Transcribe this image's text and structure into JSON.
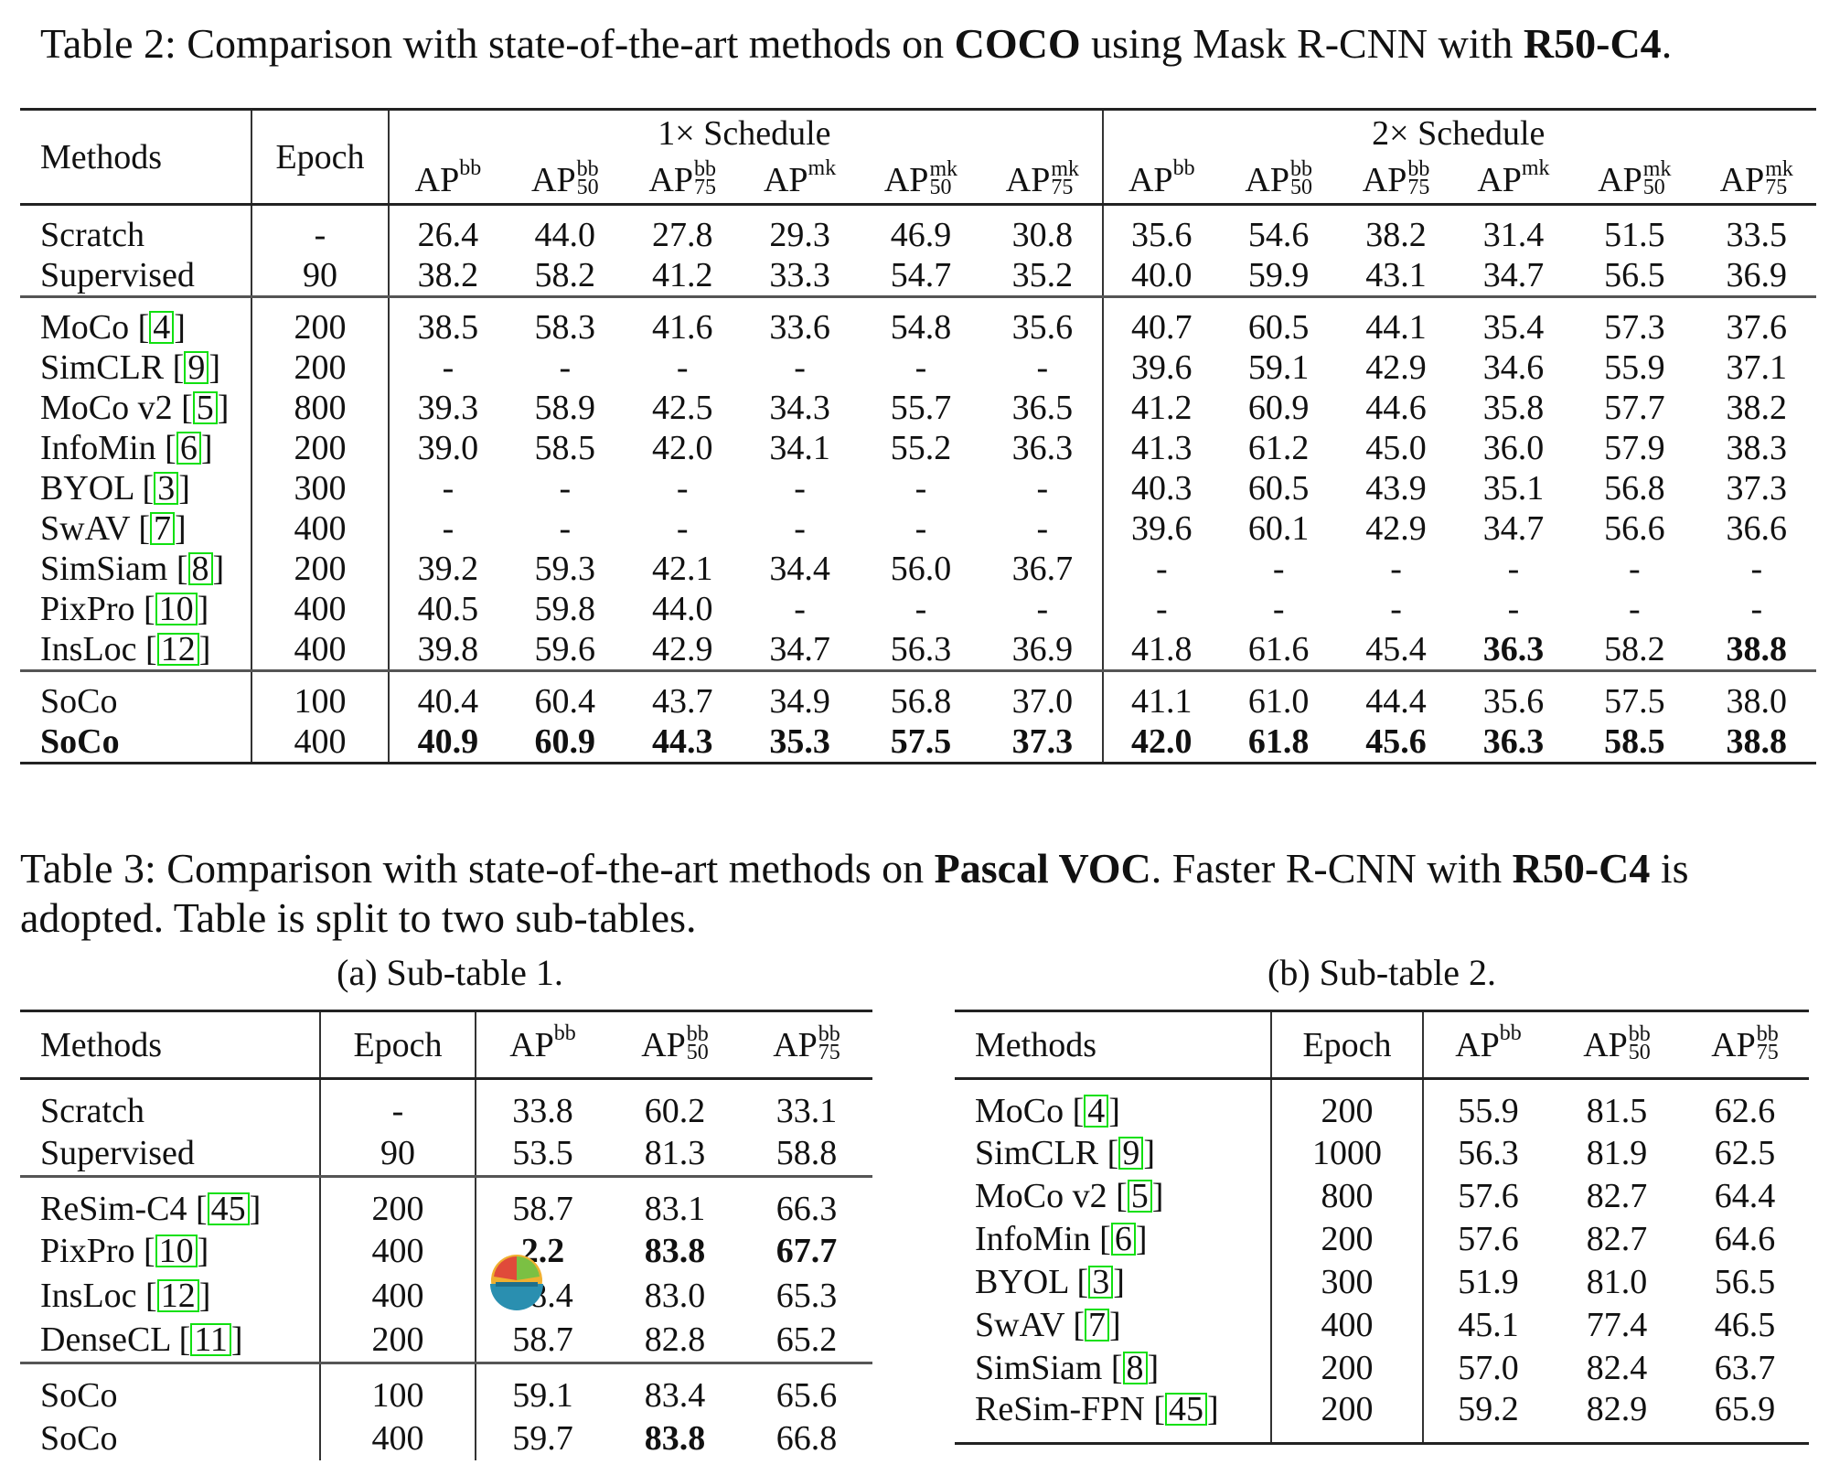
{
  "table2": {
    "caption_prefix": "Table 2: Comparison with state-of-the-art methods on ",
    "caption_bold1": "COCO",
    "caption_mid": " using Mask R-CNN with ",
    "caption_bold2": "R50-C4",
    "caption_end": ".",
    "hdr_methods": "Methods",
    "hdr_epoch": "Epoch",
    "hdr_sched1": "1× Schedule",
    "hdr_sched2": "2× Schedule",
    "ap": "AP",
    "bb": "bb",
    "mk": "mk",
    "s50": "50",
    "s75": "75",
    "rows": [
      {
        "method": "Scratch",
        "ref": "",
        "epoch": "-",
        "vals": [
          "26.4",
          "44.0",
          "27.8",
          "29.3",
          "46.9",
          "30.8",
          "35.6",
          "54.6",
          "38.2",
          "31.4",
          "51.5",
          "33.5"
        ]
      },
      {
        "method": "Supervised",
        "ref": "",
        "epoch": "90",
        "vals": [
          "38.2",
          "58.2",
          "41.2",
          "33.3",
          "54.7",
          "35.2",
          "40.0",
          "59.9",
          "43.1",
          "34.7",
          "56.5",
          "36.9"
        ]
      },
      {
        "method": "MoCo",
        "ref": "4",
        "epoch": "200",
        "vals": [
          "38.5",
          "58.3",
          "41.6",
          "33.6",
          "54.8",
          "35.6",
          "40.7",
          "60.5",
          "44.1",
          "35.4",
          "57.3",
          "37.6"
        ]
      },
      {
        "method": "SimCLR",
        "ref": "9",
        "epoch": "200",
        "vals": [
          "-",
          "-",
          "-",
          "-",
          "-",
          "-",
          "39.6",
          "59.1",
          "42.9",
          "34.6",
          "55.9",
          "37.1"
        ]
      },
      {
        "method": "MoCo v2",
        "ref": "5",
        "epoch": "800",
        "vals": [
          "39.3",
          "58.9",
          "42.5",
          "34.3",
          "55.7",
          "36.5",
          "41.2",
          "60.9",
          "44.6",
          "35.8",
          "57.7",
          "38.2"
        ]
      },
      {
        "method": "InfoMin",
        "ref": "6",
        "epoch": "200",
        "vals": [
          "39.0",
          "58.5",
          "42.0",
          "34.1",
          "55.2",
          "36.3",
          "41.3",
          "61.2",
          "45.0",
          "36.0",
          "57.9",
          "38.3"
        ]
      },
      {
        "method": "BYOL",
        "ref": "3",
        "epoch": "300",
        "vals": [
          "-",
          "-",
          "-",
          "-",
          "-",
          "-",
          "40.3",
          "60.5",
          "43.9",
          "35.1",
          "56.8",
          "37.3"
        ]
      },
      {
        "method": "SwAV",
        "ref": "7",
        "epoch": "400",
        "vals": [
          "-",
          "-",
          "-",
          "-",
          "-",
          "-",
          "39.6",
          "60.1",
          "42.9",
          "34.7",
          "56.6",
          "36.6"
        ]
      },
      {
        "method": "SimSiam",
        "ref": "8",
        "epoch": "200",
        "vals": [
          "39.2",
          "59.3",
          "42.1",
          "34.4",
          "56.0",
          "36.7",
          "-",
          "-",
          "-",
          "-",
          "-",
          "-"
        ]
      },
      {
        "method": "PixPro",
        "ref": "10",
        "epoch": "400",
        "vals": [
          "40.5",
          "59.8",
          "44.0",
          "-",
          "-",
          "-",
          "-",
          "-",
          "-",
          "-",
          "-",
          "-"
        ]
      },
      {
        "method": "InsLoc",
        "ref": "12",
        "epoch": "400",
        "vals": [
          "39.8",
          "59.6",
          "42.9",
          "34.7",
          "56.3",
          "36.9",
          "41.8",
          "61.6",
          "45.4",
          "36.3",
          "58.2",
          "38.8"
        ]
      },
      {
        "method": "SoCo",
        "ref": "",
        "epoch": "100",
        "vals": [
          "40.4",
          "60.4",
          "43.7",
          "34.9",
          "56.8",
          "37.0",
          "41.1",
          "61.0",
          "44.4",
          "35.6",
          "57.5",
          "38.0"
        ]
      },
      {
        "method": "SoCo",
        "ref": "",
        "epoch": "400",
        "vals": [
          "40.9",
          "60.9",
          "44.3",
          "35.3",
          "57.5",
          "37.3",
          "42.0",
          "61.8",
          "45.6",
          "36.3",
          "58.5",
          "38.8"
        ]
      }
    ]
  },
  "table3": {
    "caption_l1_a": "Table 3: Comparison with state-of-the-art methods on ",
    "caption_l1_b": "Pascal VOC",
    "caption_l1_c": ". Faster R-CNN with ",
    "caption_l1_d": "R50-C4",
    "caption_l1_e": " is",
    "caption_l2": "adopted. Table is split to two sub-tables.",
    "sub1_title": "(a) Sub-table 1.",
    "sub2_title": "(b) Sub-table 2.",
    "sub1_rows": [
      {
        "method": "Scratch",
        "ref": "",
        "epoch": "-",
        "vals": [
          "33.8",
          "60.2",
          "33.1"
        ]
      },
      {
        "method": "Supervised",
        "ref": "",
        "epoch": "90",
        "vals": [
          "53.5",
          "81.3",
          "58.8"
        ]
      },
      {
        "method": "ReSim-C4",
        "ref": "45",
        "epoch": "200",
        "vals": [
          "58.7",
          "83.1",
          "66.3"
        ]
      },
      {
        "method": "PixPro",
        "ref": "10",
        "epoch": "400",
        "vals": [
          "2.2",
          "83.8",
          "67.7"
        ]
      },
      {
        "method": "InsLoc",
        "ref": "12",
        "epoch": "400",
        "vals": [
          "58.4",
          "83.0",
          "65.3"
        ]
      },
      {
        "method": "DenseCL",
        "ref": "11",
        "epoch": "200",
        "vals": [
          "58.7",
          "82.8",
          "65.2"
        ]
      },
      {
        "method": "SoCo",
        "ref": "",
        "epoch": "100",
        "vals": [
          "59.1",
          "83.4",
          "65.6"
        ]
      },
      {
        "method": "SoCo",
        "ref": "",
        "epoch": "400",
        "vals": [
          "59.7",
          "83.8",
          "66.8"
        ]
      }
    ],
    "sub2_rows": [
      {
        "method": "MoCo",
        "ref": "4",
        "epoch": "200",
        "vals": [
          "55.9",
          "81.5",
          "62.6"
        ]
      },
      {
        "method": "SimCLR",
        "ref": "9",
        "epoch": "1000",
        "vals": [
          "56.3",
          "81.9",
          "62.5"
        ]
      },
      {
        "method": "MoCo v2",
        "ref": "5",
        "epoch": "800",
        "vals": [
          "57.6",
          "82.7",
          "64.4"
        ]
      },
      {
        "method": "InfoMin",
        "ref": "6",
        "epoch": "200",
        "vals": [
          "57.6",
          "82.7",
          "64.6"
        ]
      },
      {
        "method": "BYOL",
        "ref": "3",
        "epoch": "300",
        "vals": [
          "51.9",
          "81.0",
          "56.5"
        ]
      },
      {
        "method": "SwAV",
        "ref": "7",
        "epoch": "400",
        "vals": [
          "45.1",
          "77.4",
          "46.5"
        ]
      },
      {
        "method": "SimSiam",
        "ref": "8",
        "epoch": "200",
        "vals": [
          "57.0",
          "82.4",
          "63.7"
        ]
      },
      {
        "method": "ReSim-FPN",
        "ref": "45",
        "epoch": "200",
        "vals": [
          "59.2",
          "82.9",
          "65.9"
        ]
      }
    ]
  },
  "overlay": {
    "icon": "bowl-logo-icon"
  }
}
